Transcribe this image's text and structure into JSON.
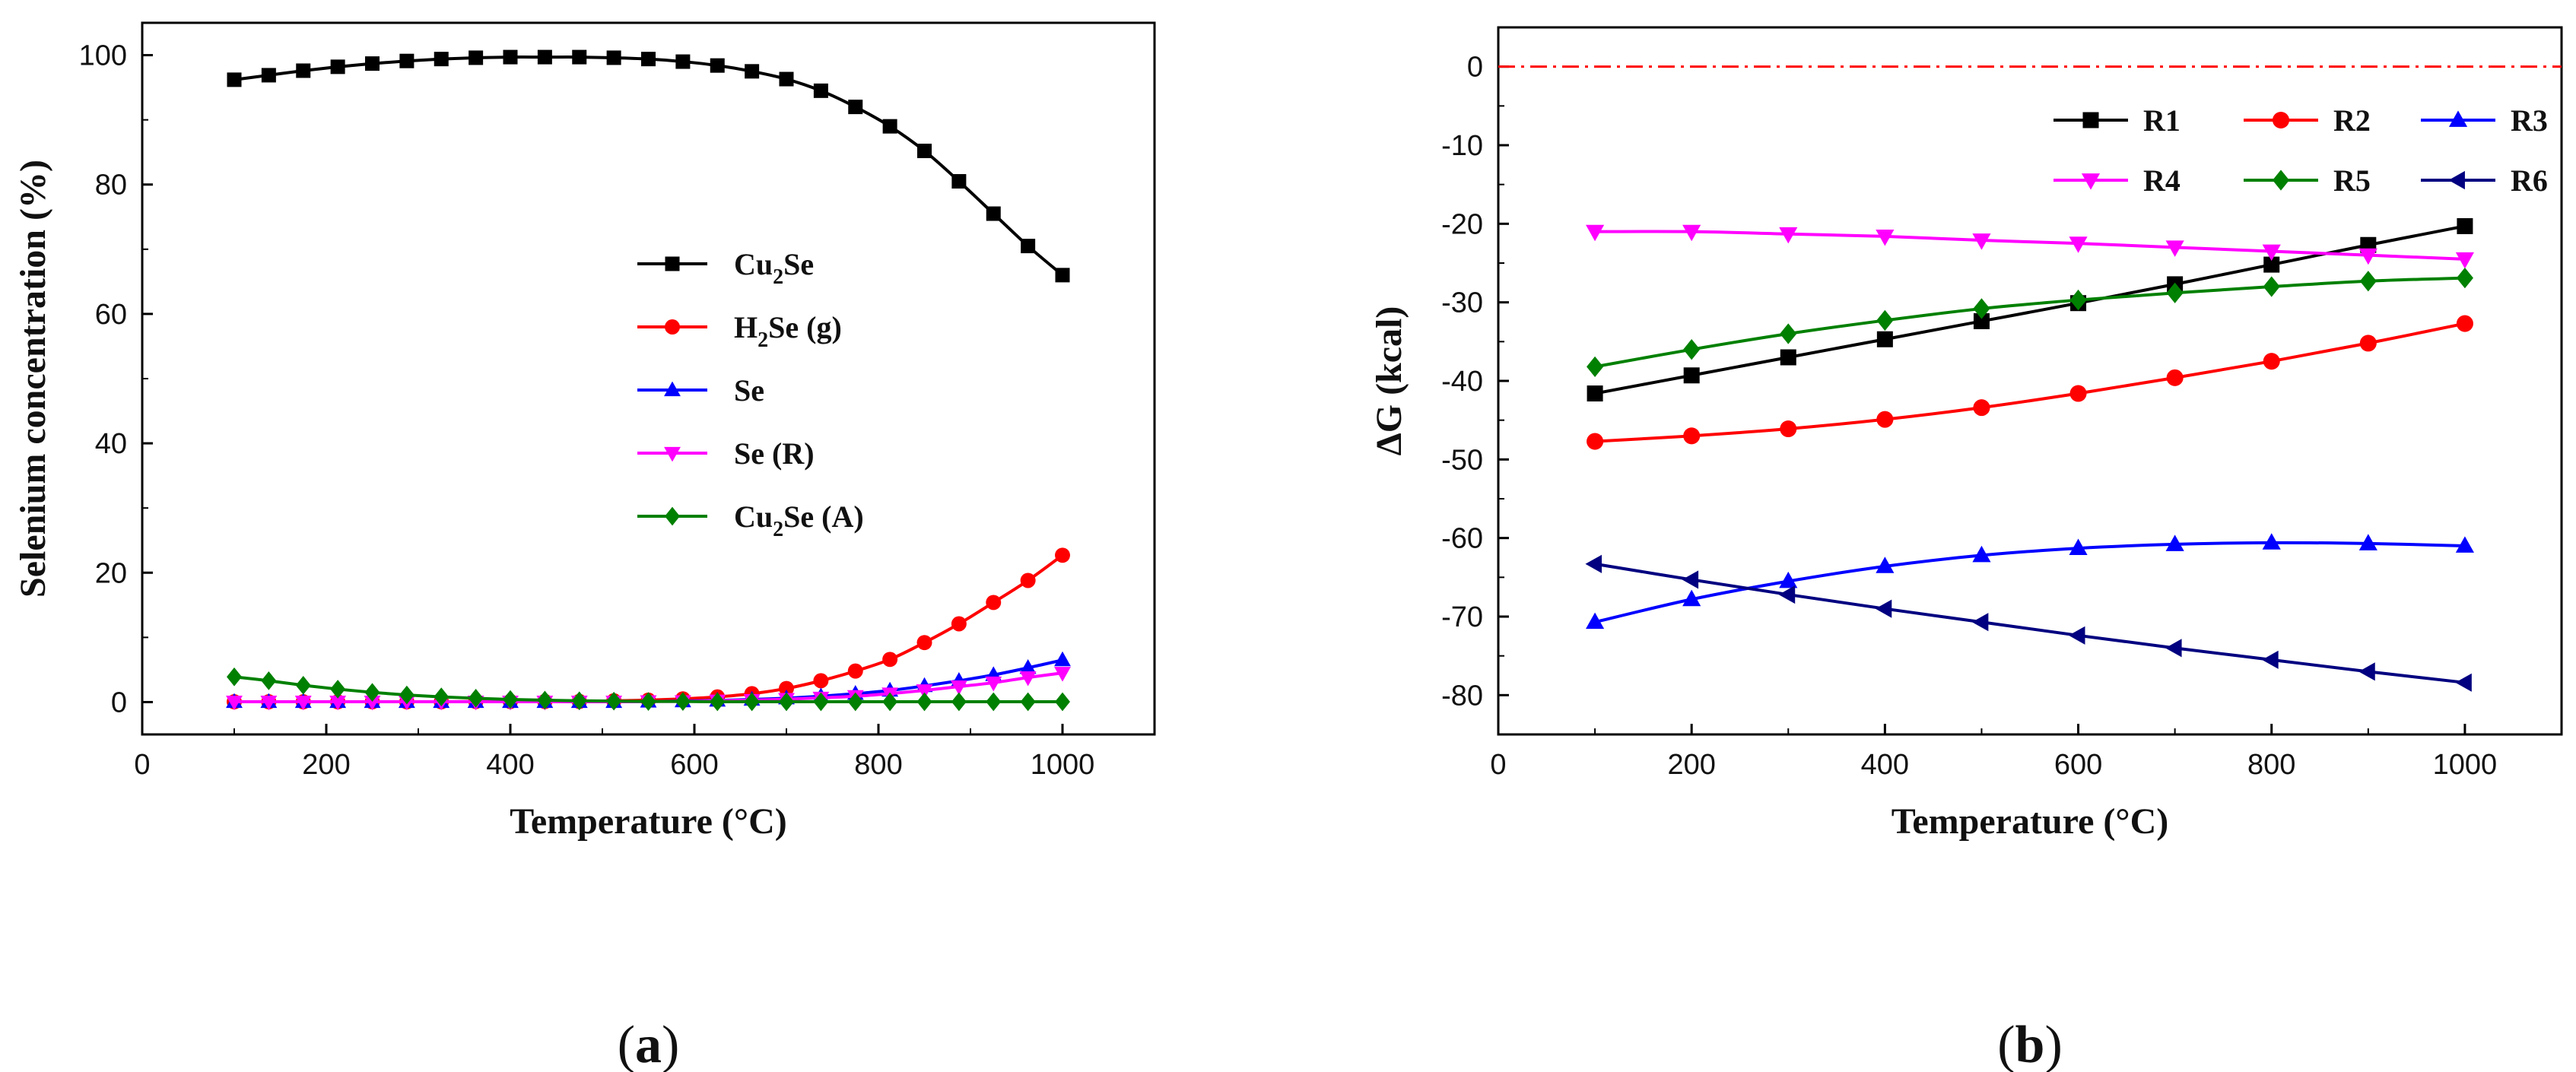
{
  "chart_data": [
    {
      "type": "line",
      "panel_label": {
        "open": "(",
        "letter": "a",
        "close": ")"
      },
      "xlabel": "Temperature (°C)",
      "ylabel": "Selenium concentration (%)",
      "xlim": [
        0,
        1100
      ],
      "ylim": [
        -5,
        105
      ],
      "xticks": [
        0,
        200,
        400,
        600,
        800,
        1000
      ],
      "yticks": [
        0,
        20,
        40,
        60,
        80,
        100
      ],
      "grid": false,
      "legend_position": "right-middle",
      "x": [
        100,
        137.5,
        175,
        212.5,
        250,
        287.5,
        325,
        362.5,
        400,
        437.5,
        475,
        512.5,
        550,
        587.5,
        625,
        662.5,
        700,
        737.5,
        775,
        812.5,
        850,
        887.5,
        925,
        962.5,
        1000
      ],
      "series": [
        {
          "name": "Cu2Se",
          "legend": [
            "Cu",
            "2",
            "Se"
          ],
          "color": "#000000",
          "marker": "square",
          "values": [
            96.2,
            96.9,
            97.6,
            98.2,
            98.7,
            99.1,
            99.4,
            99.6,
            99.7,
            99.7,
            99.7,
            99.6,
            99.4,
            99.0,
            98.4,
            97.5,
            96.3,
            94.5,
            92.0,
            89.0,
            85.2,
            80.5,
            75.5,
            70.5,
            66.0
          ]
        },
        {
          "name": "H2Se (g)",
          "legend": [
            "H",
            "2",
            "Se (g)"
          ],
          "color": "#ff0000",
          "marker": "circle",
          "values": [
            0.05,
            0.05,
            0.05,
            0.05,
            0.05,
            0.05,
            0.05,
            0.1,
            0.1,
            0.1,
            0.1,
            0.2,
            0.3,
            0.5,
            0.8,
            1.3,
            2.1,
            3.3,
            4.8,
            6.6,
            9.2,
            12.1,
            15.4,
            18.8,
            22.7
          ]
        },
        {
          "name": "Se",
          "legend": [
            "Se",
            "",
            ""
          ],
          "color": "#0000ff",
          "marker": "triangle-up",
          "values": [
            0.05,
            0.05,
            0.05,
            0.05,
            0.05,
            0.05,
            0.05,
            0.05,
            0.05,
            0.05,
            0.05,
            0.05,
            0.1,
            0.15,
            0.25,
            0.4,
            0.6,
            0.9,
            1.3,
            1.8,
            2.5,
            3.3,
            4.2,
            5.3,
            6.5
          ]
        },
        {
          "name": "Se (R)",
          "legend": [
            "Se (R)",
            "",
            ""
          ],
          "color": "#ff00ff",
          "marker": "triangle-down",
          "values": [
            0.05,
            0.05,
            0.05,
            0.05,
            0.05,
            0.05,
            0.05,
            0.05,
            0.05,
            0.05,
            0.05,
            0.05,
            0.1,
            0.1,
            0.2,
            0.3,
            0.45,
            0.65,
            0.9,
            1.3,
            1.8,
            2.4,
            3.0,
            3.8,
            4.5
          ]
        },
        {
          "name": "Cu2Se (A)",
          "legend": [
            "Cu",
            "2",
            "Se (A)"
          ],
          "color": "#008000",
          "marker": "diamond",
          "values": [
            3.9,
            3.3,
            2.6,
            2.0,
            1.5,
            1.1,
            0.8,
            0.6,
            0.4,
            0.3,
            0.2,
            0.15,
            0.1,
            0.1,
            0.05,
            0.05,
            0.05,
            0.05,
            0.05,
            0.05,
            0.05,
            0.05,
            0.05,
            0.05,
            0.05
          ]
        }
      ]
    },
    {
      "type": "line",
      "panel_label": {
        "open": "(",
        "letter": "b",
        "close": ")"
      },
      "xlabel": "Temperature (°C)",
      "ylabel": "ΔG (kcal)",
      "xlim": [
        0,
        1100
      ],
      "ylim": [
        -85,
        5
      ],
      "xticks": [
        0,
        200,
        400,
        600,
        800,
        1000
      ],
      "yticks": [
        0,
        -10,
        -20,
        -30,
        -40,
        -50,
        -60,
        -70,
        -80
      ],
      "reference_line": {
        "y": 0,
        "color": "#ff0000",
        "style": "dash-dot"
      },
      "grid": false,
      "legend_position": "top-right",
      "x": [
        100,
        200,
        300,
        400,
        500,
        600,
        700,
        800,
        900,
        1000
      ],
      "series": [
        {
          "name": "R1",
          "color": "#000000",
          "marker": "square",
          "values": [
            -41.6,
            -39.3,
            -37.0,
            -34.7,
            -32.4,
            -30.1,
            -27.7,
            -25.2,
            -22.7,
            -20.3
          ]
        },
        {
          "name": "R2",
          "color": "#ff0000",
          "marker": "circle",
          "values": [
            -47.7,
            -47.0,
            -46.1,
            -44.9,
            -43.4,
            -41.6,
            -39.6,
            -37.5,
            -35.2,
            -32.7
          ]
        },
        {
          "name": "R3",
          "color": "#0000ff",
          "marker": "triangle-up",
          "values": [
            -70.7,
            -67.8,
            -65.5,
            -63.6,
            -62.2,
            -61.3,
            -60.8,
            -60.6,
            -60.7,
            -61.0
          ]
        },
        {
          "name": "R4",
          "color": "#ff00ff",
          "marker": "triangle-down",
          "values": [
            -21.0,
            -21.0,
            -21.3,
            -21.6,
            -22.1,
            -22.5,
            -23.0,
            -23.5,
            -24.0,
            -24.5
          ]
        },
        {
          "name": "R5",
          "color": "#008000",
          "marker": "diamond",
          "values": [
            -38.2,
            -36.0,
            -34.0,
            -32.3,
            -30.8,
            -29.7,
            -28.8,
            -28.0,
            -27.3,
            -26.9
          ]
        },
        {
          "name": "R6",
          "color": "#000080",
          "marker": "triangle-left",
          "values": [
            -63.3,
            -65.3,
            -67.2,
            -69.0,
            -70.7,
            -72.4,
            -74.0,
            -75.5,
            -77.0,
            -78.4
          ]
        }
      ]
    }
  ]
}
